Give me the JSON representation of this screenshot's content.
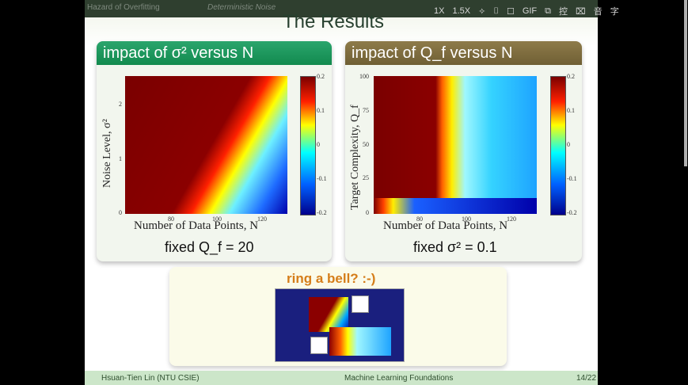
{
  "header": {
    "left_crumb": "Hazard of Overfitting",
    "right_crumb": "Deterministic Noise",
    "title": "The Results"
  },
  "toolbar": {
    "items": [
      "1X",
      "1.5X",
      "✧",
      "⌷",
      "☐",
      "GIF",
      "⧉",
      "控",
      "⌧",
      "音",
      "字"
    ]
  },
  "panels": [
    {
      "title": "impact of σ² versus N",
      "y_label": "Noise Level, σ²",
      "x_label": "Number of Data Points, N",
      "fixed": "fixed Q_f = 20",
      "x_ticks": [
        "80",
        "100",
        "120"
      ],
      "y_ticks": [
        "0",
        "1",
        "2"
      ],
      "colorbar_ticks": [
        "0.2",
        "0.1",
        "0",
        "-0.1",
        "-0.2"
      ]
    },
    {
      "title": "impact of Q_f versus N",
      "y_label": "Target Complexity, Q_f",
      "x_label": "Number of Data Points, N",
      "fixed": "fixed σ² = 0.1",
      "x_ticks": [
        "80",
        "100",
        "120"
      ],
      "y_ticks": [
        "0",
        "25",
        "50",
        "75",
        "100"
      ],
      "colorbar_ticks": [
        "0.2",
        "0.1",
        "0",
        "-0.1",
        "-0.2"
      ]
    }
  ],
  "bell": {
    "title": "ring a bell? :-)"
  },
  "footer": {
    "author": "Hsuan-Tien Lin  (NTU CSIE)",
    "course": "Machine Learning Foundations",
    "page": "14/22"
  },
  "colors": {
    "panel1_header": "#128a4e",
    "panel2_header": "#6f5f34",
    "bell_title": "#d57d19"
  }
}
